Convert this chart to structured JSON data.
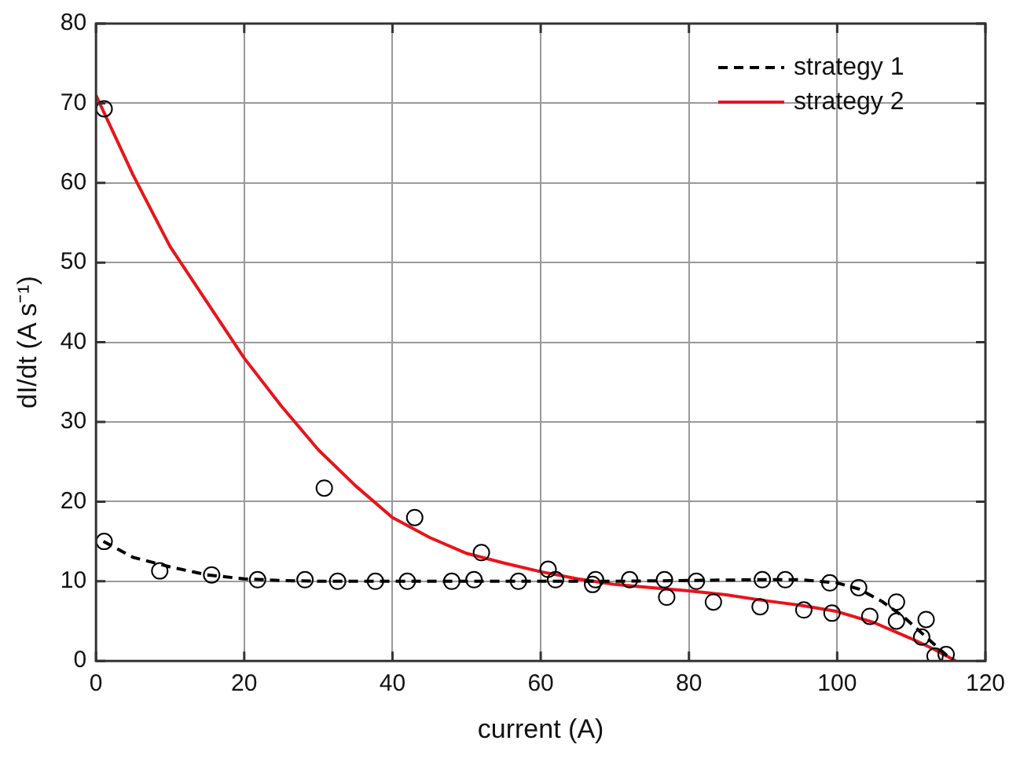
{
  "chart_data": {
    "type": "line",
    "xlabel": "current (A)",
    "ylabel": "dI/dt (A s⁻¹)",
    "xlim": [
      0,
      120
    ],
    "xticks": [
      0,
      20,
      40,
      60,
      80,
      100,
      120
    ],
    "ylim": [
      0,
      80
    ],
    "yticks": [
      0,
      10,
      20,
      30,
      40,
      50,
      60,
      70,
      80
    ],
    "grid": true,
    "legend": "top right",
    "series": [
      {
        "name": "strategy 1",
        "color": "#000000",
        "line_style": "dashed",
        "marker": "none",
        "x": [
          1,
          5,
          10,
          15,
          20,
          25,
          30,
          40,
          50,
          60,
          70,
          80,
          90,
          95,
          100,
          103,
          106,
          109,
          112,
          115
        ],
        "values": [
          15,
          13,
          11.8,
          10.8,
          10.3,
          10.1,
          10,
          10,
          10,
          10,
          10,
          10.1,
          10.2,
          10.2,
          9.8,
          9,
          7.5,
          5.5,
          3,
          0.5
        ]
      },
      {
        "name": "strategy 2",
        "color": "#e8141b",
        "line_style": "solid",
        "marker": "none",
        "x": [
          0,
          5,
          10,
          15,
          20,
          25,
          30,
          35,
          40,
          45,
          50,
          55,
          60,
          65,
          70,
          75,
          80,
          85,
          90,
          95,
          100,
          105,
          110,
          113,
          116
        ],
        "values": [
          71,
          61,
          52,
          45,
          38,
          32,
          26.5,
          22,
          18,
          15.5,
          13.5,
          12.3,
          11.2,
          10.3,
          9.6,
          9.2,
          8.8,
          8.3,
          7.6,
          7,
          6.2,
          4.8,
          2.8,
          1.5,
          0
        ]
      },
      {
        "type": "scatter",
        "color": "#000000",
        "marker": "circle",
        "x": [
          1.1,
          1.1,
          8.6,
          15.6,
          21.8,
          28.2,
          32.6,
          37.7,
          42,
          48,
          51,
          57,
          62,
          30.8,
          43,
          52,
          61,
          67.4,
          67,
          72,
          76.7,
          77,
          81,
          83.3,
          89.9,
          89.6,
          93,
          95.5,
          99,
          99.3,
          102.9,
          104.4,
          108,
          108,
          112,
          111.4,
          113.2,
          114.7
        ],
        "values": [
          69.3,
          15,
          11.3,
          10.8,
          10.2,
          10.2,
          10,
          10,
          10,
          10,
          10.2,
          10,
          10.2,
          21.7,
          18,
          13.6,
          11.5,
          10.2,
          9.6,
          10.2,
          10.2,
          8,
          10,
          7.4,
          10.2,
          6.8,
          10.2,
          6.4,
          9.8,
          6,
          9.2,
          5.6,
          7.4,
          5,
          5.2,
          3,
          0.6,
          0.8
        ]
      }
    ]
  }
}
